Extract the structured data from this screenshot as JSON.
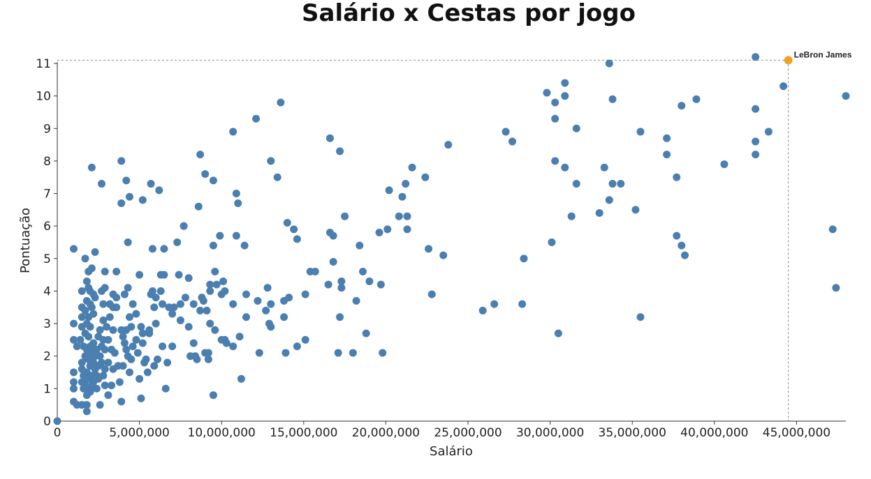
{
  "chart_data": {
    "type": "scatter",
    "title": "Salário x Cestas por jogo",
    "xlabel": "Salário",
    "ylabel": "Pontuação",
    "xlim": [
      0,
      48000000
    ],
    "ylim": [
      0,
      11
    ],
    "x_ticks": [
      0,
      5000000,
      10000000,
      15000000,
      20000000,
      25000000,
      30000000,
      35000000,
      40000000,
      45000000
    ],
    "x_tick_labels": [
      "0",
      "5,000,000",
      "10,000,000",
      "15,000,000",
      "20,000,000",
      "25,000,000",
      "30,000,000",
      "35,000,000",
      "40,000,000",
      "45,000,000"
    ],
    "y_ticks": [
      0,
      1,
      2,
      3,
      4,
      5,
      6,
      7,
      8,
      9,
      10,
      11
    ],
    "y_tick_labels": [
      "0",
      "1",
      "2",
      "3",
      "4",
      "5",
      "6",
      "7",
      "8",
      "9",
      "10",
      "11"
    ],
    "grid": false,
    "point_color": "#4a7fb0",
    "highlight_color": "#f2a11a",
    "highlight": {
      "label": "LeBron James",
      "x": 44500000,
      "y": 11.1
    },
    "points": [
      [
        0,
        0
      ],
      [
        1000000,
        5.3
      ],
      [
        1000000,
        3.0
      ],
      [
        1000000,
        2.5
      ],
      [
        1000000,
        1.5
      ],
      [
        1000000,
        1.2
      ],
      [
        1000000,
        1.0
      ],
      [
        1000000,
        0.6
      ],
      [
        1200000,
        2.3
      ],
      [
        1200000,
        0.5
      ],
      [
        1400000,
        2.5
      ],
      [
        1500000,
        1.8
      ],
      [
        1500000,
        1.2
      ],
      [
        1500000,
        1.6
      ],
      [
        1500000,
        0.5
      ],
      [
        1500000,
        3.5
      ],
      [
        1500000,
        2.9
      ],
      [
        1500000,
        3.2
      ],
      [
        1500000,
        4.0
      ],
      [
        1600000,
        2.3
      ],
      [
        1600000,
        1.4
      ],
      [
        1600000,
        1.0
      ],
      [
        1700000,
        5.0
      ],
      [
        1700000,
        3.4
      ],
      [
        1700000,
        2.7
      ],
      [
        1700000,
        2.0
      ],
      [
        1700000,
        1.1
      ],
      [
        1800000,
        0.3
      ],
      [
        1800000,
        0.5
      ],
      [
        1800000,
        0.8
      ],
      [
        1800000,
        1.5
      ],
      [
        1800000,
        2.2
      ],
      [
        1800000,
        3.0
      ],
      [
        1800000,
        3.7
      ],
      [
        1800000,
        4.3
      ],
      [
        1900000,
        4.6
      ],
      [
        1900000,
        4.1
      ],
      [
        1900000,
        3.2
      ],
      [
        1900000,
        2.6
      ],
      [
        1900000,
        1.9
      ],
      [
        1900000,
        1.3
      ],
      [
        2000000,
        1.7
      ],
      [
        2000000,
        2.3
      ],
      [
        2000000,
        2.9
      ],
      [
        2000000,
        3.6
      ],
      [
        2000000,
        4.0
      ],
      [
        2000000,
        1.0
      ],
      [
        2000000,
        0.9
      ],
      [
        2100000,
        7.8
      ],
      [
        2100000,
        4.7
      ],
      [
        2100000,
        3.5
      ],
      [
        2100000,
        2.1
      ],
      [
        2100000,
        1.4
      ],
      [
        2100000,
        1.1
      ],
      [
        2200000,
        3.9
      ],
      [
        2200000,
        3.3
      ],
      [
        2200000,
        2.4
      ],
      [
        2200000,
        1.8
      ],
      [
        2200000,
        1.2
      ],
      [
        2300000,
        5.2
      ],
      [
        2300000,
        3.8
      ],
      [
        2300000,
        2.0
      ],
      [
        2300000,
        1.6
      ],
      [
        2400000,
        1.0
      ],
      [
        2400000,
        1.4
      ],
      [
        2400000,
        2.2
      ],
      [
        2500000,
        2.6
      ],
      [
        2500000,
        1.7
      ],
      [
        2500000,
        1.3
      ],
      [
        2600000,
        0.5
      ],
      [
        2600000,
        2.0
      ],
      [
        2600000,
        2.8
      ],
      [
        2700000,
        7.3
      ],
      [
        2700000,
        4.0
      ],
      [
        2700000,
        1.8
      ],
      [
        2700000,
        2.3
      ],
      [
        2800000,
        3.6
      ],
      [
        2800000,
        3.1
      ],
      [
        2800000,
        2.5
      ],
      [
        2800000,
        1.4
      ],
      [
        2900000,
        4.6
      ],
      [
        2900000,
        4.1
      ],
      [
        2900000,
        2.2
      ],
      [
        2900000,
        1.6
      ],
      [
        2900000,
        1.1
      ],
      [
        3000000,
        2.9
      ],
      [
        3100000,
        0.8
      ],
      [
        3100000,
        1.8
      ],
      [
        3100000,
        2.5
      ],
      [
        3200000,
        3.6
      ],
      [
        3200000,
        3.2
      ],
      [
        3300000,
        1.1
      ],
      [
        3300000,
        2.2
      ],
      [
        3400000,
        3.9
      ],
      [
        3400000,
        3.5
      ],
      [
        3400000,
        2.8
      ],
      [
        3400000,
        1.6
      ],
      [
        3500000,
        2.1
      ],
      [
        3600000,
        4.6
      ],
      [
        3600000,
        3.8
      ],
      [
        3600000,
        3.5
      ],
      [
        3700000,
        1.7
      ],
      [
        3800000,
        1.2
      ],
      [
        3900000,
        8.0
      ],
      [
        3900000,
        6.7
      ],
      [
        3900000,
        2.8
      ],
      [
        3900000,
        0.6
      ],
      [
        4000000,
        2.6
      ],
      [
        4000000,
        1.7
      ],
      [
        4100000,
        2.4
      ],
      [
        4100000,
        3.9
      ],
      [
        4200000,
        7.4
      ],
      [
        4200000,
        2.2
      ],
      [
        4200000,
        2.8
      ],
      [
        4300000,
        5.5
      ],
      [
        4300000,
        4.1
      ],
      [
        4300000,
        2.0
      ],
      [
        4400000,
        6.9
      ],
      [
        4400000,
        3.2
      ],
      [
        4400000,
        1.5
      ],
      [
        4500000,
        2.9
      ],
      [
        4500000,
        1.9
      ],
      [
        4600000,
        3.6
      ],
      [
        4600000,
        2.3
      ],
      [
        4800000,
        3.3
      ],
      [
        4800000,
        2.5
      ],
      [
        4900000,
        2.1
      ],
      [
        5000000,
        4.5
      ],
      [
        5000000,
        1.3
      ],
      [
        5100000,
        2.9
      ],
      [
        5100000,
        0.7
      ],
      [
        5200000,
        6.8
      ],
      [
        5200000,
        2.4
      ],
      [
        5200000,
        2.7
      ],
      [
        5300000,
        1.8
      ],
      [
        5400000,
        1.9
      ],
      [
        5500000,
        1.5
      ],
      [
        5600000,
        2.8
      ],
      [
        5600000,
        2.7
      ],
      [
        5700000,
        7.3
      ],
      [
        5700000,
        3.9
      ],
      [
        5800000,
        5.3
      ],
      [
        5800000,
        4.0
      ],
      [
        5900000,
        3.5
      ],
      [
        5900000,
        1.7
      ],
      [
        6000000,
        3.8
      ],
      [
        6000000,
        3.0
      ],
      [
        6100000,
        1.9
      ],
      [
        6200000,
        7.1
      ],
      [
        6300000,
        4.5
      ],
      [
        6300000,
        4.0
      ],
      [
        6400000,
        3.6
      ],
      [
        6400000,
        2.3
      ],
      [
        6500000,
        4.5
      ],
      [
        6500000,
        5.3
      ],
      [
        6600000,
        1.0
      ],
      [
        6700000,
        1.8
      ],
      [
        6800000,
        3.5
      ],
      [
        7000000,
        3.3
      ],
      [
        7000000,
        2.3
      ],
      [
        7100000,
        3.5
      ],
      [
        7300000,
        5.5
      ],
      [
        7400000,
        4.5
      ],
      [
        7500000,
        3.6
      ],
      [
        7500000,
        3.1
      ],
      [
        7700000,
        6.0
      ],
      [
        7800000,
        3.8
      ],
      [
        8000000,
        2.9
      ],
      [
        8000000,
        4.4
      ],
      [
        8100000,
        2.0
      ],
      [
        8300000,
        2.4
      ],
      [
        8300000,
        3.6
      ],
      [
        8400000,
        2.0
      ],
      [
        8500000,
        1.9
      ],
      [
        8600000,
        6.6
      ],
      [
        8700000,
        3.4
      ],
      [
        8700000,
        8.2
      ],
      [
        8800000,
        3.8
      ],
      [
        8900000,
        3.7
      ],
      [
        9000000,
        2.1
      ],
      [
        9000000,
        7.6
      ],
      [
        9100000,
        3.4
      ],
      [
        9200000,
        2.1
      ],
      [
        9200000,
        1.9
      ],
      [
        9300000,
        3.0
      ],
      [
        9300000,
        4.2
      ],
      [
        9300000,
        4.0
      ],
      [
        9500000,
        0.8
      ],
      [
        9500000,
        5.4
      ],
      [
        9500000,
        7.4
      ],
      [
        9600000,
        4.6
      ],
      [
        9600000,
        2.8
      ],
      [
        9700000,
        4.2
      ],
      [
        9900000,
        5.7
      ],
      [
        10000000,
        3.9
      ],
      [
        10000000,
        2.5
      ],
      [
        10100000,
        4.3
      ],
      [
        10200000,
        4.0
      ],
      [
        10200000,
        2.5
      ],
      [
        10300000,
        2.4
      ],
      [
        10700000,
        3.6
      ],
      [
        10700000,
        8.9
      ],
      [
        10700000,
        2.3
      ],
      [
        10900000,
        5.7
      ],
      [
        10900000,
        7.0
      ],
      [
        11000000,
        6.7
      ],
      [
        11100000,
        2.6
      ],
      [
        11200000,
        1.3
      ],
      [
        11400000,
        5.4
      ],
      [
        11500000,
        3.9
      ],
      [
        11500000,
        3.2
      ],
      [
        12100000,
        9.3
      ],
      [
        12200000,
        3.7
      ],
      [
        12300000,
        2.1
      ],
      [
        12700000,
        3.4
      ],
      [
        12800000,
        4.1
      ],
      [
        12900000,
        3.0
      ],
      [
        13000000,
        8.0
      ],
      [
        13000000,
        2.9
      ],
      [
        13000000,
        3.6
      ],
      [
        13400000,
        7.5
      ],
      [
        13600000,
        9.8
      ],
      [
        13800000,
        3.7
      ],
      [
        13800000,
        3.2
      ],
      [
        13900000,
        2.1
      ],
      [
        14000000,
        6.1
      ],
      [
        14100000,
        3.8
      ],
      [
        14400000,
        5.9
      ],
      [
        14600000,
        2.3
      ],
      [
        14600000,
        5.6
      ],
      [
        15100000,
        3.9
      ],
      [
        15100000,
        2.5
      ],
      [
        15400000,
        4.6
      ],
      [
        15700000,
        4.6
      ],
      [
        16500000,
        4.2
      ],
      [
        16600000,
        8.7
      ],
      [
        16600000,
        5.8
      ],
      [
        16800000,
        5.7
      ],
      [
        16800000,
        4.9
      ],
      [
        17100000,
        2.1
      ],
      [
        17200000,
        3.2
      ],
      [
        17200000,
        8.3
      ],
      [
        17300000,
        4.3
      ],
      [
        17300000,
        4.1
      ],
      [
        17500000,
        6.3
      ],
      [
        18000000,
        2.1
      ],
      [
        18200000,
        3.7
      ],
      [
        18400000,
        5.4
      ],
      [
        18600000,
        4.6
      ],
      [
        18800000,
        2.7
      ],
      [
        19000000,
        4.3
      ],
      [
        19600000,
        5.8
      ],
      [
        19700000,
        4.2
      ],
      [
        19800000,
        2.1
      ],
      [
        20100000,
        5.9
      ],
      [
        20200000,
        7.1
      ],
      [
        20800000,
        6.3
      ],
      [
        21000000,
        6.9
      ],
      [
        21200000,
        7.3
      ],
      [
        21300000,
        5.9
      ],
      [
        21300000,
        6.3
      ],
      [
        21600000,
        7.8
      ],
      [
        22400000,
        7.5
      ],
      [
        22600000,
        5.3
      ],
      [
        22800000,
        3.9
      ],
      [
        23500000,
        5.1
      ],
      [
        23800000,
        8.5
      ],
      [
        25900000,
        3.4
      ],
      [
        26600000,
        3.6
      ],
      [
        27300000,
        8.9
      ],
      [
        27700000,
        8.6
      ],
      [
        28300000,
        3.6
      ],
      [
        28400000,
        5.0
      ],
      [
        29800000,
        10.1
      ],
      [
        30100000,
        5.5
      ],
      [
        30300000,
        9.8
      ],
      [
        30300000,
        9.3
      ],
      [
        30300000,
        8.0
      ],
      [
        30500000,
        2.7
      ],
      [
        30900000,
        10.4
      ],
      [
        30900000,
        10.0
      ],
      [
        30900000,
        7.8
      ],
      [
        31300000,
        6.3
      ],
      [
        31600000,
        9.0
      ],
      [
        31600000,
        7.3
      ],
      [
        33000000,
        6.4
      ],
      [
        33300000,
        7.8
      ],
      [
        33600000,
        11.0
      ],
      [
        33600000,
        6.8
      ],
      [
        33800000,
        9.9
      ],
      [
        33800000,
        7.3
      ],
      [
        34300000,
        7.3
      ],
      [
        35200000,
        6.5
      ],
      [
        35500000,
        8.9
      ],
      [
        35500000,
        3.2
      ],
      [
        37100000,
        8.7
      ],
      [
        37100000,
        8.2
      ],
      [
        37700000,
        5.7
      ],
      [
        37700000,
        7.5
      ],
      [
        38000000,
        9.7
      ],
      [
        38000000,
        5.4
      ],
      [
        38200000,
        5.1
      ],
      [
        38900000,
        9.9
      ],
      [
        40600000,
        7.9
      ],
      [
        42500000,
        11.2
      ],
      [
        42500000,
        9.6
      ],
      [
        42500000,
        8.6
      ],
      [
        42500000,
        8.2
      ],
      [
        44200000,
        10.3
      ],
      [
        43300000,
        8.9
      ],
      [
        47200000,
        5.9
      ],
      [
        47400000,
        4.1
      ],
      [
        48000000,
        10.0
      ]
    ]
  }
}
